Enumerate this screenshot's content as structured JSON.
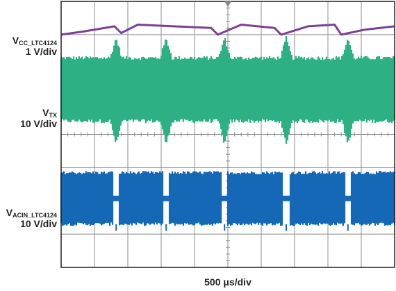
{
  "chart_data": {
    "type": "line",
    "title": "",
    "xlabel": "500 μs/div",
    "grid": true,
    "divisions": {
      "x": 10,
      "y": 8
    },
    "series": [
      {
        "name_main": "V",
        "name_sub": "CC_LTC4124",
        "scale": "1 V/div",
        "color": "#7b3f98",
        "description_points_x_div": [
          0,
          0.7,
          1.6,
          1.8,
          2.3,
          4.5,
          4.7,
          5.4,
          6.4,
          6.6,
          7.4,
          8.2,
          8.4,
          9.1,
          10
        ],
        "description_points_y_div": [
          7.0,
          7.1,
          7.25,
          7.05,
          7.3,
          7.2,
          7.0,
          7.3,
          7.2,
          7.0,
          7.25,
          7.3,
          7.0,
          7.15,
          7.25
        ]
      },
      {
        "name_main": "V",
        "name_sub": "TX",
        "scale": "10 V/div",
        "color": "#2db084",
        "band_div": [
          4.4,
          6.3
        ],
        "spike_x_div": [
          1.65,
          3.15,
          4.9,
          6.75,
          8.6
        ],
        "spike_y_div": [
          3.7,
          6.9
        ]
      },
      {
        "name_main": "V",
        "name_sub": "ACIN_LTC4124",
        "scale": "10 V/div",
        "color": "#1468b5",
        "band_div": [
          1.3,
          2.85
        ],
        "gap_x_div": [
          1.65,
          3.15,
          4.9,
          6.75,
          8.6
        ]
      }
    ]
  }
}
